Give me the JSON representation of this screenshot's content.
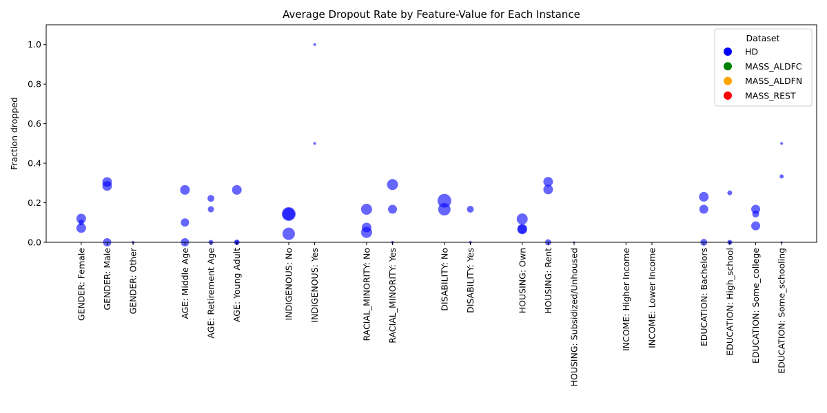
{
  "chart_data": {
    "type": "scatter",
    "title": "Average Dropout Rate by Feature-Value for Each Instance",
    "xlabel": "",
    "ylabel": "Fraction dropped",
    "ylim": [
      0,
      1.1
    ],
    "yticks": [
      0.0,
      0.2,
      0.4,
      0.6,
      0.8,
      1.0
    ],
    "ytick_labels": [
      "0.0",
      "0.2",
      "0.4",
      "0.6",
      "0.8",
      "1.0"
    ],
    "grid": false,
    "legend": {
      "title": "Dataset",
      "placement": "top-right",
      "entries": [
        {
          "name": "HD",
          "color": "#0000ff"
        },
        {
          "name": "MASS_ALDFC",
          "color": "#008000"
        },
        {
          "name": "MASS_ALDFN",
          "color": "#ffa500"
        },
        {
          "name": "MASS_REST",
          "color": "#ff0000"
        }
      ]
    },
    "marker_alpha": 0.6,
    "categories": [
      "GENDER: Female",
      "GENDER: Male",
      "GENDER: Other",
      "AGE: Middle Age",
      "AGE: Retirement Age",
      "AGE: Young Adult",
      "INDIGENOUS: No",
      "INDIGENOUS: Yes",
      "RACIAL_MINORITY: No",
      "RACIAL_MINORITY: Yes",
      "DISABILITY: No",
      "DISABILITY: Yes",
      "HOUSING: Own",
      "HOUSING: Rent",
      "HOUSING: Subsidized/Unhoused",
      "INCOME: Higher Income",
      "INCOME: Lower Income",
      "EDUCATION: Bachelors",
      "EDUCATION: High_school",
      "EDUCATION: Some_college",
      "EDUCATION: Some_schooling"
    ],
    "category_positions": [
      0,
      1,
      2,
      4,
      5,
      6,
      8,
      9,
      11,
      12,
      14,
      15,
      17,
      18,
      19,
      21,
      22,
      24,
      25,
      26,
      27
    ],
    "series": [
      {
        "name": "HD",
        "color": "#0000ff",
        "points": [
          {
            "category": "GENDER: Female",
            "y": 0.12,
            "size": 14
          },
          {
            "category": "GENDER: Female",
            "y": 0.1,
            "size": 8
          },
          {
            "category": "GENDER: Female",
            "y": 0.072,
            "size": 14
          },
          {
            "category": "GENDER: Male",
            "y": 0.305,
            "size": 14
          },
          {
            "category": "GENDER: Male",
            "y": 0.285,
            "size": 14
          },
          {
            "category": "GENDER: Male",
            "y": 0.0,
            "size": 12
          },
          {
            "category": "GENDER: Other",
            "y": 0.0,
            "size": 4
          },
          {
            "category": "AGE: Middle Age",
            "y": 0.265,
            "size": 14
          },
          {
            "category": "AGE: Middle Age",
            "y": 0.1,
            "size": 12
          },
          {
            "category": "AGE: Middle Age",
            "y": 0.0,
            "size": 12
          },
          {
            "category": "AGE: Retirement Age",
            "y": 0.222,
            "size": 10
          },
          {
            "category": "AGE: Retirement Age",
            "y": 0.167,
            "size": 9
          },
          {
            "category": "AGE: Retirement Age",
            "y": 0.0,
            "size": 7
          },
          {
            "category": "AGE: Young Adult",
            "y": 0.265,
            "size": 14
          },
          {
            "category": "AGE: Young Adult",
            "y": 0.0,
            "size": 8
          },
          {
            "category": "AGE: Young Adult",
            "y": 0.0,
            "size": 6
          },
          {
            "category": "INDIGENOUS: No",
            "y": 0.143,
            "size": 20
          },
          {
            "category": "INDIGENOUS: No",
            "y": 0.143,
            "size": 18
          },
          {
            "category": "INDIGENOUS: No",
            "y": 0.043,
            "size": 18
          },
          {
            "category": "INDIGENOUS: Yes",
            "y": 1.0,
            "size": 4
          },
          {
            "category": "INDIGENOUS: Yes",
            "y": 0.5,
            "size": 4
          },
          {
            "category": "RACIAL_MINORITY: No",
            "y": 0.167,
            "size": 16
          },
          {
            "category": "RACIAL_MINORITY: No",
            "y": 0.075,
            "size": 14
          },
          {
            "category": "RACIAL_MINORITY: No",
            "y": 0.05,
            "size": 16
          },
          {
            "category": "RACIAL_MINORITY: Yes",
            "y": 0.292,
            "size": 16
          },
          {
            "category": "RACIAL_MINORITY: Yes",
            "y": 0.167,
            "size": 13
          },
          {
            "category": "RACIAL_MINORITY: Yes",
            "y": 0.0,
            "size": 4
          },
          {
            "category": "DISABILITY: No",
            "y": 0.21,
            "size": 20
          },
          {
            "category": "DISABILITY: No",
            "y": 0.167,
            "size": 18
          },
          {
            "category": "DISABILITY: Yes",
            "y": 0.167,
            "size": 10
          },
          {
            "category": "DISABILITY: Yes",
            "y": 0.0,
            "size": 4
          },
          {
            "category": "HOUSING: Own",
            "y": 0.118,
            "size": 16
          },
          {
            "category": "HOUSING: Own",
            "y": 0.068,
            "size": 14
          },
          {
            "category": "HOUSING: Own",
            "y": 0.065,
            "size": 14
          },
          {
            "category": "HOUSING: Rent",
            "y": 0.306,
            "size": 14
          },
          {
            "category": "HOUSING: Rent",
            "y": 0.267,
            "size": 14
          },
          {
            "category": "HOUSING: Rent",
            "y": 0.0,
            "size": 9
          },
          {
            "category": "HOUSING: Subsidized/Unhoused",
            "y": 0.0,
            "size": 3
          },
          {
            "category": "EDUCATION: Bachelors",
            "y": 0.23,
            "size": 14
          },
          {
            "category": "EDUCATION: Bachelors",
            "y": 0.167,
            "size": 13
          },
          {
            "category": "EDUCATION: Bachelors",
            "y": 0.0,
            "size": 10
          },
          {
            "category": "EDUCATION: High_school",
            "y": 0.25,
            "size": 7
          },
          {
            "category": "EDUCATION: High_school",
            "y": 0.0,
            "size": 7
          },
          {
            "category": "EDUCATION: High_school",
            "y": 0.0,
            "size": 4
          },
          {
            "category": "EDUCATION: Some_college",
            "y": 0.167,
            "size": 13
          },
          {
            "category": "EDUCATION: Some_college",
            "y": 0.143,
            "size": 10
          },
          {
            "category": "EDUCATION: Some_college",
            "y": 0.083,
            "size": 13
          },
          {
            "category": "EDUCATION: Some_schooling",
            "y": 0.5,
            "size": 4
          },
          {
            "category": "EDUCATION: Some_schooling",
            "y": 0.333,
            "size": 6
          },
          {
            "category": "EDUCATION: Some_schooling",
            "y": 0.0,
            "size": 3
          }
        ]
      }
    ]
  }
}
